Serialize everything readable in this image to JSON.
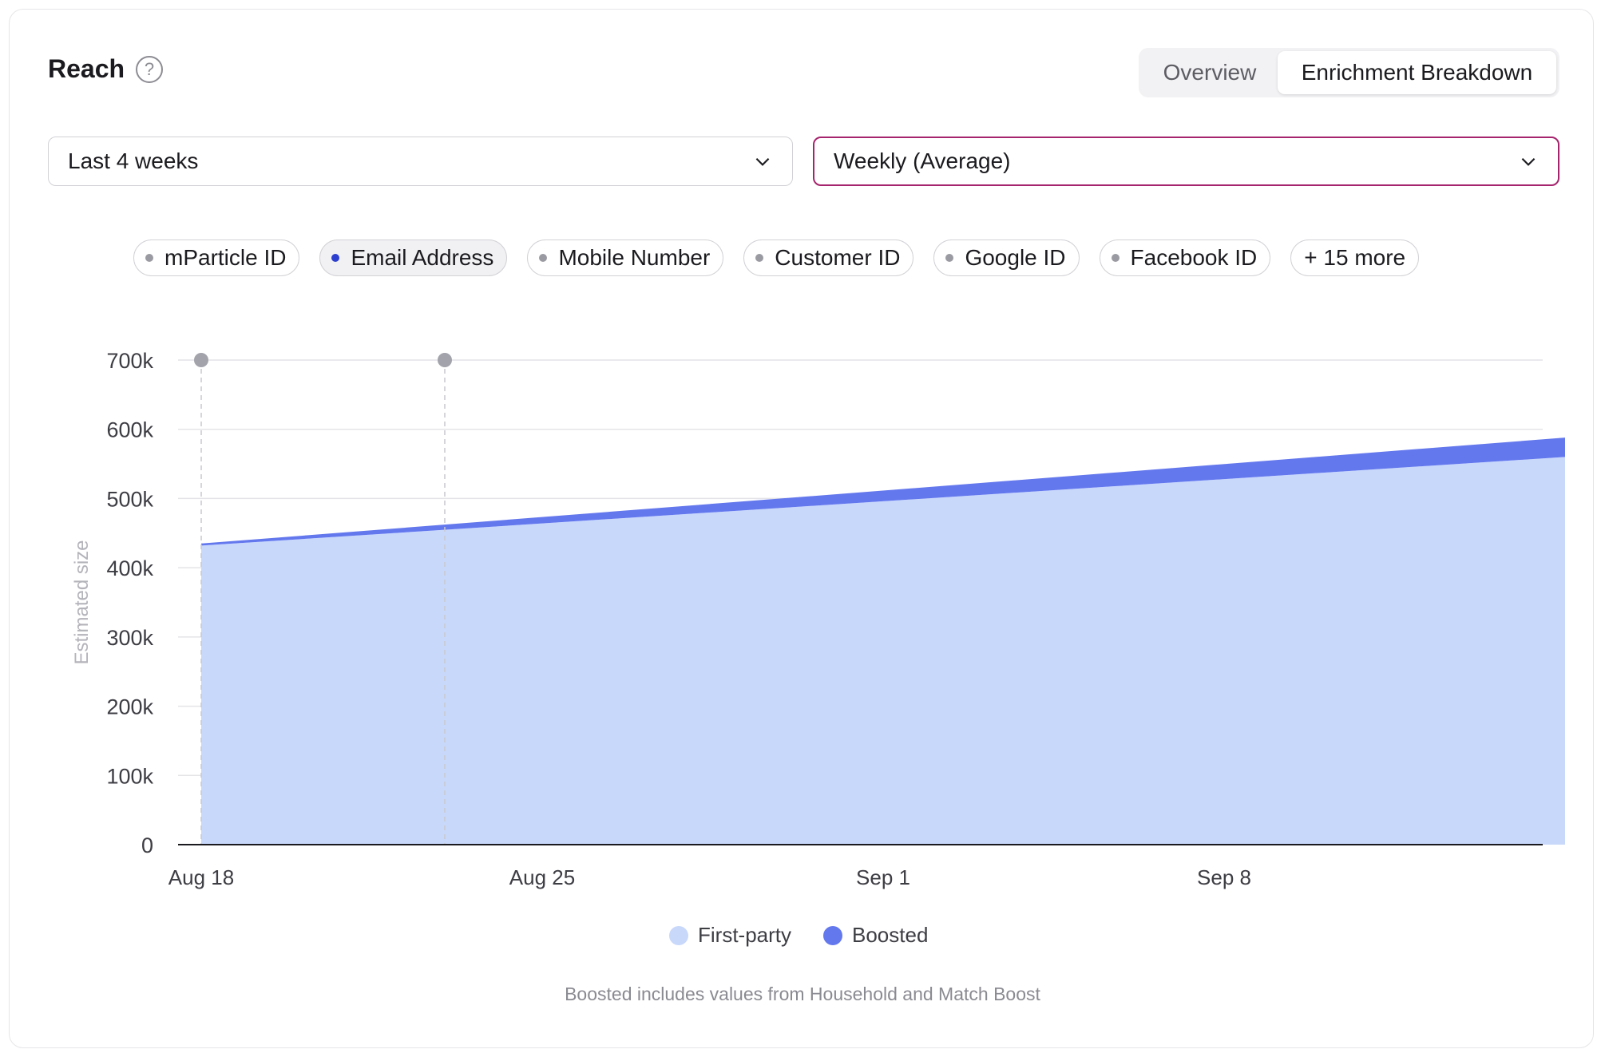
{
  "header": {
    "title": "Reach",
    "help_icon": "question-circle-icon"
  },
  "tabs": [
    {
      "label": "Overview",
      "active": false
    },
    {
      "label": "Enrichment Breakdown",
      "active": true
    }
  ],
  "filters": {
    "range": {
      "value": "Last 4 weeks",
      "icon": "chevron-down-icon"
    },
    "frequency": {
      "value": "Weekly (Average)",
      "icon": "chevron-down-icon"
    }
  },
  "identifiers": [
    {
      "label": "mParticle ID",
      "selected": false
    },
    {
      "label": "Email Address",
      "selected": true
    },
    {
      "label": "Mobile Number",
      "selected": false
    },
    {
      "label": "Customer ID",
      "selected": false
    },
    {
      "label": "Google ID",
      "selected": false
    },
    {
      "label": "Facebook ID",
      "selected": false
    }
  ],
  "more_label": "+ 15 more",
  "colors": {
    "first_party": "#c8d8fb",
    "boosted": "#6478ee",
    "marker": "#a2a3ab",
    "selected_dot": "#2c3fcf",
    "frequency_border": "#a6246d"
  },
  "chart_data": {
    "type": "area",
    "stacked": true,
    "ylabel": "Estimated size",
    "ylim": [
      0,
      700000
    ],
    "yticks": [
      0,
      100000,
      200000,
      300000,
      400000,
      500000,
      600000,
      700000
    ],
    "ytick_labels": [
      "0",
      "100k",
      "200k",
      "300k",
      "400k",
      "500k",
      "600k",
      "700k"
    ],
    "x_dates": [
      "2024-08-18",
      "2024-09-15"
    ],
    "xticks": [
      "2024-08-18",
      "2024-08-25",
      "2024-09-01",
      "2024-09-08"
    ],
    "xtick_labels": [
      "Aug 18",
      "Aug 25",
      "Sep 1",
      "Sep 8"
    ],
    "event_markers": [
      "2024-08-18",
      "2024-08-23"
    ],
    "grid": true,
    "legend_position": "bottom-center",
    "series": [
      {
        "name": "First-party",
        "values": [
          432000,
          560000
        ]
      },
      {
        "name": "Boosted",
        "values": [
          3000,
          28000
        ]
      }
    ]
  },
  "footnote": "Boosted includes values from Household and Match Boost"
}
